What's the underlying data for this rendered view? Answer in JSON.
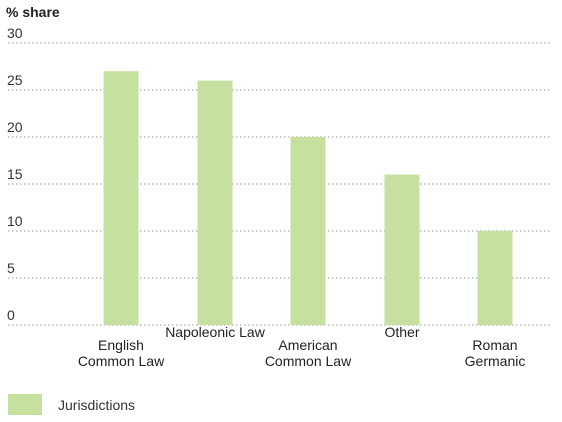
{
  "chart_data": {
    "type": "bar",
    "ylabel": "% share",
    "categories": [
      "English\nCommon Law",
      "Napoleonic Law",
      "American\nCommon Law",
      "Other",
      "Roman\nGermanic"
    ],
    "series": [
      {
        "name": "Jurisdictions",
        "values": [
          27,
          26,
          20,
          16,
          10
        ]
      }
    ],
    "ylim": [
      0,
      30
    ],
    "yticks": [
      0,
      5,
      10,
      15,
      20,
      25,
      30
    ],
    "grid": true,
    "legend_position": "bottom-left",
    "bar_color": "#c6e0a0",
    "grid_color": "#9a9a9a"
  }
}
